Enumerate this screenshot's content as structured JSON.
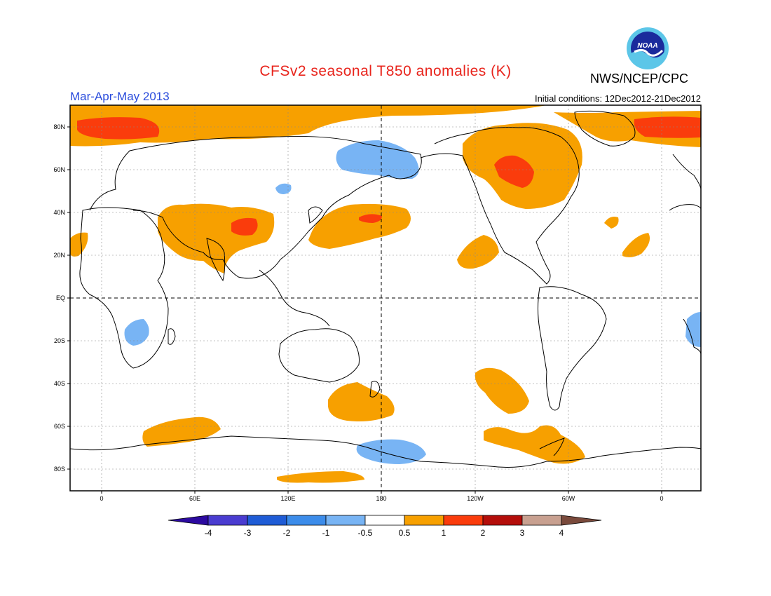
{
  "title": "CFSv2 seasonal T850 anomalies (K)",
  "season": "Mar-Apr-May 2013",
  "initial_conditions": "Initial conditions: 12Dec2012-21Dec2012",
  "agency": "NWS/NCEP/CPC",
  "logo_text": "NOAA",
  "lat_labels": [
    "80N",
    "60N",
    "40N",
    "20N",
    "EQ",
    "20S",
    "40S",
    "60S",
    "80S"
  ],
  "lon_labels": [
    "0",
    "60E",
    "120E",
    "180",
    "120W",
    "60W",
    "0"
  ],
  "colorbar": {
    "ticks": [
      "-4",
      "-3",
      "-2",
      "-1",
      "-0.5",
      "0.5",
      "1",
      "2",
      "3",
      "4"
    ],
    "colors": [
      "#2c0aa0",
      "#4a3cd0",
      "#1f5cd6",
      "#3c8cea",
      "#78b4f4",
      "#ffffff",
      "#f7a000",
      "#fa3c0c",
      "#b40e0a",
      "#c8a090",
      "#7a4a3c"
    ]
  },
  "colors": {
    "warm_1": "#f7a000",
    "warm_2": "#fa3c0c",
    "cool_1": "#78b4f4",
    "title": "#e8241c",
    "season": "#2a4cdc"
  }
}
